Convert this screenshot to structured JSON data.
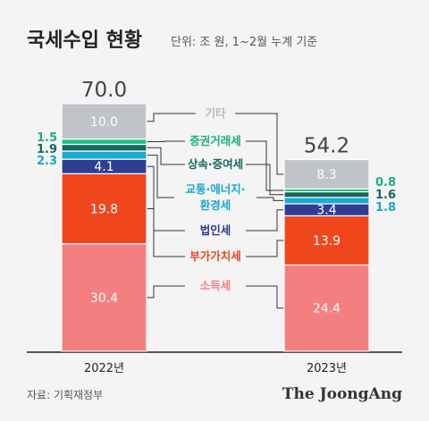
{
  "title": "국세수입 현황",
  "subtitle": "단위: 조 원, 1~2월 누계 기준",
  "source": "자료: 기획재정부",
  "brand": "The JoongAng",
  "chart_data": {
    "type": "bar",
    "stacked": true,
    "categories": [
      "2022년",
      "2023년"
    ],
    "totals": [
      "70.0",
      "54.2"
    ],
    "ylim": [
      0,
      70
    ],
    "series": [
      {
        "name": "소득세",
        "values": [
          30.4,
          24.4
        ],
        "labels": [
          "30.4",
          "24.4"
        ],
        "color": "#f47f80",
        "label_color": "#f47f80"
      },
      {
        "name": "부가가치세",
        "values": [
          19.8,
          13.9
        ],
        "labels": [
          "19.8",
          "13.9"
        ],
        "color": "#f0461c",
        "label_color": "#e8441c"
      },
      {
        "name": "법인세",
        "values": [
          4.1,
          3.4
        ],
        "labels": [
          "4.1",
          "3.4"
        ],
        "color": "#303d93",
        "label_color": "#2b3990"
      },
      {
        "name": "교통·에너지·환경세",
        "values": [
          2.3,
          1.8
        ],
        "labels": [
          "2.3",
          "1.8"
        ],
        "color": "#1aaad6",
        "label_color": "#1aa5cf"
      },
      {
        "name": "상속·증여세",
        "values": [
          1.9,
          1.6
        ],
        "labels": [
          "1.9",
          "1.6"
        ],
        "color": "#14695a",
        "label_color": "#14695a"
      },
      {
        "name": "증권거래세",
        "values": [
          1.5,
          0.8
        ],
        "labels": [
          "1.5",
          "0.8"
        ],
        "color": "#1ebf83",
        "label_color": "#1ab07a"
      },
      {
        "name": "기타",
        "values": [
          10.0,
          8.3
        ],
        "labels": [
          "10.0",
          "8.3"
        ],
        "color": "#c0c4c8",
        "label_color": "#b4b8bc"
      }
    ]
  }
}
